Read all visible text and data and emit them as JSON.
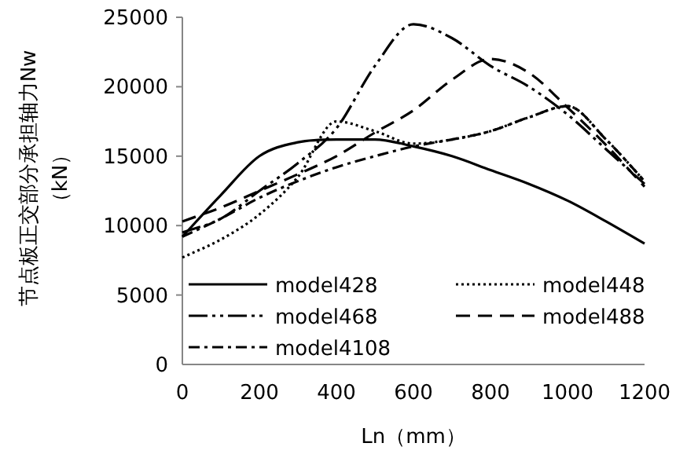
{
  "chart_data": {
    "type": "line",
    "ylabel": "节点板正交部分承担轴力Nw\n（kN）",
    "xlabel": "Ln（mm）",
    "x": [
      0,
      100,
      200,
      300,
      400,
      500,
      600,
      700,
      800,
      900,
      1000,
      1100,
      1200
    ],
    "xlim": [
      0,
      1200
    ],
    "xticks": [
      0,
      200,
      400,
      600,
      800,
      1000,
      1200
    ],
    "ylim": [
      0,
      25000
    ],
    "yticks": [
      0,
      5000,
      10000,
      15000,
      20000,
      25000
    ],
    "grid": false,
    "legend": "bottom",
    "marker": "none",
    "series": [
      {
        "name": "model428",
        "color": "#000000",
        "line_style": "solid",
        "values": [
          9200,
          12200,
          15000,
          16000,
          16200,
          16200,
          15700,
          15000,
          14000,
          13000,
          11800,
          10300,
          8700
        ]
      },
      {
        "name": "model448",
        "color": "#000000",
        "line_style": "dotted",
        "values": [
          7700,
          9000,
          10800,
          13500,
          17500,
          16800,
          15900,
          16200,
          16800,
          17800,
          18600,
          16200,
          13200
        ]
      },
      {
        "name": "model468",
        "color": "#000000",
        "line_style": "dashdotdot",
        "values": [
          9500,
          10500,
          12500,
          14500,
          17000,
          21500,
          24500,
          23500,
          21500,
          20000,
          18000,
          15500,
          13000
        ]
      },
      {
        "name": "model488",
        "color": "#000000",
        "line_style": "dashed",
        "values": [
          10300,
          11300,
          12500,
          13700,
          15000,
          16700,
          18300,
          20500,
          22000,
          21000,
          18500,
          15800,
          12800
        ]
      },
      {
        "name": "model4108",
        "color": "#000000",
        "line_style": "dashdot",
        "values": [
          9200,
          10500,
          12000,
          13200,
          14200,
          15000,
          15700,
          16200,
          16800,
          17800,
          18600,
          16200,
          13200
        ]
      }
    ]
  }
}
